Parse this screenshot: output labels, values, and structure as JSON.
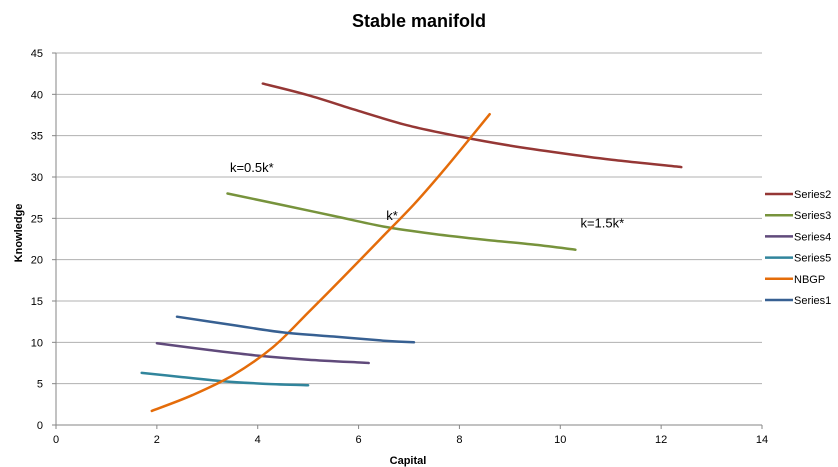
{
  "chart_data": {
    "type": "line",
    "title": "Stable manifold",
    "xlabel": "Capital",
    "ylabel": "Knowledge",
    "xlim": [
      0,
      14
    ],
    "ylim": [
      0,
      45
    ],
    "xticks": [
      0,
      2,
      4,
      6,
      8,
      10,
      12,
      14
    ],
    "yticks": [
      0,
      5,
      10,
      15,
      20,
      25,
      30,
      35,
      40,
      45
    ],
    "grid": "horizontal",
    "legend_position": "right",
    "series": [
      {
        "name": "Series2",
        "color": "#953735",
        "x": [
          4.1,
          5.0,
          6.0,
          7.0,
          8.0,
          9.0,
          10.0,
          11.0,
          12.4
        ],
        "y": [
          41.3,
          39.9,
          38.0,
          36.2,
          34.9,
          33.8,
          32.9,
          32.1,
          31.2
        ]
      },
      {
        "name": "Series3",
        "color": "#77933C",
        "x": [
          3.4,
          4.5,
          5.5,
          6.5,
          7.5,
          8.5,
          9.5,
          10.3
        ],
        "y": [
          28.0,
          26.6,
          25.3,
          24.0,
          23.1,
          22.4,
          21.8,
          21.2
        ]
      },
      {
        "name": "Series4",
        "color": "#604A7B",
        "x": [
          2.0,
          3.0,
          4.0,
          5.0,
          6.2
        ],
        "y": [
          9.9,
          9.1,
          8.4,
          7.9,
          7.5
        ]
      },
      {
        "name": "Series5",
        "color": "#31859C",
        "x": [
          1.7,
          2.5,
          3.3,
          4.1,
          5.0
        ],
        "y": [
          6.3,
          5.8,
          5.3,
          5.0,
          4.8
        ]
      },
      {
        "name": "NBGP",
        "color": "#E46C0A",
        "x": [
          1.9,
          2.7,
          3.5,
          4.3,
          5.0,
          5.7,
          6.4,
          7.1,
          7.7,
          8.2,
          8.6
        ],
        "y": [
          1.7,
          3.6,
          6.0,
          9.4,
          13.6,
          17.9,
          22.3,
          26.7,
          30.9,
          34.6,
          37.6
        ]
      },
      {
        "name": "Series1",
        "color": "#376092",
        "x": [
          2.4,
          3.5,
          4.5,
          5.5,
          6.5,
          7.1
        ],
        "y": [
          13.1,
          12.1,
          11.2,
          10.7,
          10.2,
          10.0
        ]
      }
    ],
    "annotations": [
      {
        "text": "k=0.5k*",
        "x": 3.45,
        "y": 30.6
      },
      {
        "text": "k*",
        "x": 6.55,
        "y": 24.8
      },
      {
        "text": "k=1.5k*",
        "x": 10.4,
        "y": 23.9
      }
    ]
  }
}
